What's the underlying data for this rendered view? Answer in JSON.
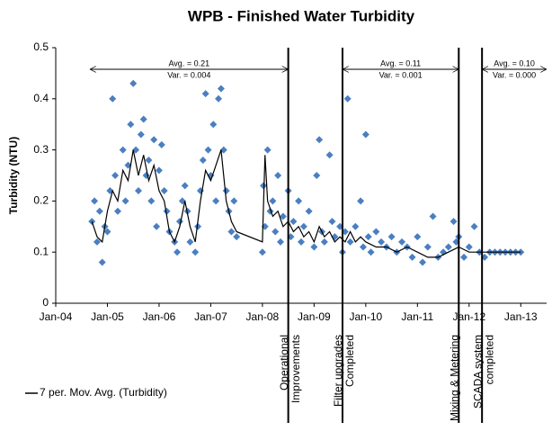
{
  "chart_data": {
    "type": "scatter",
    "title": "WPB - Finished Water Turbidity",
    "y_label": "Turbidity  (NTU)",
    "xlim": [
      2004,
      2013.5
    ],
    "ylim": [
      0,
      0.5
    ],
    "xticks": [
      {
        "value": 2004,
        "label": "Jan-04"
      },
      {
        "value": 2005,
        "label": "Jan-05"
      },
      {
        "value": 2006,
        "label": "Jan-06"
      },
      {
        "value": 2007,
        "label": "Jan-07"
      },
      {
        "value": 2008,
        "label": "Jan-08"
      },
      {
        "value": 2009,
        "label": "Jan-09"
      },
      {
        "value": 2010,
        "label": "Jan-10"
      },
      {
        "value": 2011,
        "label": "Jan-11"
      },
      {
        "value": 2012,
        "label": "Jan-12"
      },
      {
        "value": 2013,
        "label": "Jan-13"
      }
    ],
    "yticks": [
      0,
      0.1,
      0.2,
      0.3,
      0.4,
      0.5
    ],
    "series": [
      {
        "color": "#4a7fc1",
        "x": [
          2004.7,
          2004.75,
          2004.8,
          2004.85,
          2004.9,
          2004.95,
          2005.0,
          2005.05,
          2005.1,
          2005.15,
          2005.2,
          2005.3,
          2005.35,
          2005.4,
          2005.45,
          2005.5,
          2005.55,
          2005.6,
          2005.65,
          2005.7,
          2005.75,
          2005.8,
          2005.85,
          2005.9,
          2005.95,
          2006.0,
          2006.05,
          2006.1,
          2006.15,
          2006.2,
          2006.3,
          2006.35,
          2006.4,
          2006.45,
          2006.5,
          2006.55,
          2006.6,
          2006.7,
          2006.75,
          2006.8,
          2006.85,
          2006.9,
          2006.95,
          2007.0,
          2007.05,
          2007.1,
          2007.15,
          2007.2,
          2007.25,
          2007.3,
          2007.35,
          2007.4,
          2007.45,
          2007.5,
          2008.0,
          2008.02,
          2008.05,
          2008.1,
          2008.15,
          2008.2,
          2008.25,
          2008.3,
          2008.35,
          2008.4,
          2008.5,
          2008.55,
          2008.6,
          2008.7,
          2008.75,
          2008.8,
          2008.9,
          2009.0,
          2009.05,
          2009.1,
          2009.15,
          2009.2,
          2009.3,
          2009.35,
          2009.4,
          2009.5,
          2009.55,
          2009.6,
          2009.65,
          2009.7,
          2009.8,
          2009.9,
          2009.95,
          2010.0,
          2010.05,
          2010.1,
          2010.2,
          2010.3,
          2010.4,
          2010.5,
          2010.6,
          2010.7,
          2010.8,
          2010.9,
          2011.0,
          2011.1,
          2011.2,
          2011.3,
          2011.4,
          2011.5,
          2011.6,
          2011.7,
          2011.75,
          2011.8,
          2011.9,
          2012.0,
          2012.1,
          2012.2,
          2012.3,
          2012.4,
          2012.5,
          2012.6,
          2012.7,
          2012.8,
          2012.9,
          2013.0
        ],
        "values": [
          0.16,
          0.2,
          0.12,
          0.18,
          0.08,
          0.15,
          0.14,
          0.22,
          0.4,
          0.25,
          0.18,
          0.3,
          0.2,
          0.27,
          0.35,
          0.43,
          0.3,
          0.22,
          0.33,
          0.36,
          0.25,
          0.28,
          0.2,
          0.32,
          0.15,
          0.26,
          0.31,
          0.22,
          0.18,
          0.14,
          0.12,
          0.1,
          0.16,
          0.2,
          0.23,
          0.18,
          0.12,
          0.1,
          0.15,
          0.22,
          0.28,
          0.41,
          0.3,
          0.25,
          0.35,
          0.2,
          0.4,
          0.42,
          0.3,
          0.22,
          0.18,
          0.14,
          0.2,
          0.13,
          0.1,
          0.23,
          0.15,
          0.3,
          0.18,
          0.2,
          0.14,
          0.25,
          0.12,
          0.17,
          0.22,
          0.13,
          0.16,
          0.2,
          0.12,
          0.15,
          0.18,
          0.11,
          0.25,
          0.32,
          0.14,
          0.12,
          0.29,
          0.16,
          0.13,
          0.15,
          0.1,
          0.14,
          0.4,
          0.12,
          0.15,
          0.2,
          0.11,
          0.33,
          0.13,
          0.1,
          0.14,
          0.12,
          0.11,
          0.13,
          0.1,
          0.12,
          0.11,
          0.09,
          0.13,
          0.08,
          0.11,
          0.17,
          0.09,
          0.1,
          0.11,
          0.16,
          0.12,
          0.13,
          0.09,
          0.11,
          0.15,
          0.1,
          0.09,
          0.1,
          0.1,
          0.1,
          0.1,
          0.1,
          0.1,
          0.1
        ]
      },
      {
        "name": "7 per. Mov. Avg. (Turbidity)",
        "type": "line",
        "color": "#000000",
        "x": [
          2004.7,
          2004.8,
          2004.9,
          2005.0,
          2005.1,
          2005.2,
          2005.3,
          2005.4,
          2005.5,
          2005.6,
          2005.7,
          2005.8,
          2005.9,
          2006.0,
          2006.1,
          2006.2,
          2006.3,
          2006.4,
          2006.5,
          2006.6,
          2006.7,
          2006.8,
          2006.9,
          2007.0,
          2007.1,
          2007.2,
          2007.3,
          2007.4,
          2007.5,
          2008.0,
          2008.05,
          2008.1,
          2008.2,
          2008.3,
          2008.4,
          2008.5,
          2008.6,
          2008.7,
          2008.8,
          2008.9,
          2009.0,
          2009.1,
          2009.2,
          2009.3,
          2009.4,
          2009.5,
          2009.6,
          2009.7,
          2009.8,
          2009.9,
          2010.0,
          2010.2,
          2010.4,
          2010.6,
          2010.8,
          2011.0,
          2011.2,
          2011.4,
          2011.6,
          2011.8,
          2012.0,
          2012.5,
          2013.0
        ],
        "values": [
          0.16,
          0.13,
          0.12,
          0.18,
          0.22,
          0.2,
          0.26,
          0.24,
          0.3,
          0.25,
          0.29,
          0.24,
          0.27,
          0.22,
          0.2,
          0.14,
          0.12,
          0.15,
          0.2,
          0.15,
          0.12,
          0.2,
          0.26,
          0.24,
          0.27,
          0.3,
          0.2,
          0.16,
          0.14,
          0.12,
          0.29,
          0.2,
          0.17,
          0.18,
          0.15,
          0.16,
          0.14,
          0.15,
          0.13,
          0.14,
          0.12,
          0.15,
          0.13,
          0.14,
          0.12,
          0.13,
          0.12,
          0.14,
          0.12,
          0.13,
          0.12,
          0.11,
          0.11,
          0.1,
          0.11,
          0.1,
          0.09,
          0.09,
          0.1,
          0.11,
          0.1,
          0.1,
          0.1
        ]
      }
    ],
    "periods": [
      {
        "x1": 2004.66,
        "x2": 2008.5,
        "avg": "Avg. = 0.21",
        "var": "Var. = 0.004"
      },
      {
        "x1": 2009.55,
        "x2": 2011.8,
        "avg": "Avg. = 0.11",
        "var": "Var. = 0.001"
      },
      {
        "x1": 2012.25,
        "x2": 2013.5,
        "avg": "Avg. = 0.10",
        "var": "Var. = 0.000"
      }
    ],
    "events": [
      {
        "x": 2008.5,
        "label_lines": [
          "Operational",
          "Improvements"
        ]
      },
      {
        "x": 2009.55,
        "label_lines": [
          "Filter upgrades",
          "Completed"
        ]
      },
      {
        "x": 2011.8,
        "label_lines": [
          "Mixing & Metering"
        ]
      },
      {
        "x": 2012.25,
        "label_lines": [
          "SCADA system",
          "completed"
        ]
      }
    ]
  }
}
